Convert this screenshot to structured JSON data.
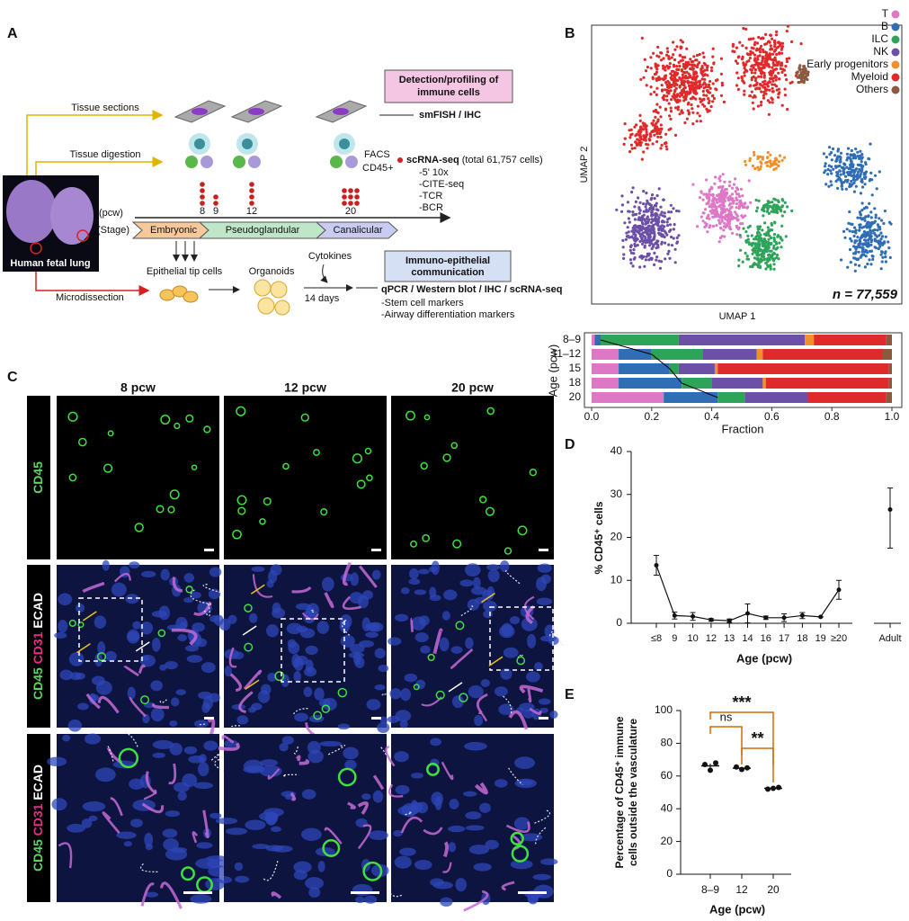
{
  "panel_a": {
    "label": "A",
    "detection_box": [
      "Detection/profiling of",
      "immune cells"
    ],
    "tissue_sections": "Tissue sections",
    "smfish": "smFISH / IHC",
    "tissue_digestion": "Tissue digestion",
    "facs": "FACS",
    "cd45": "CD45+",
    "scrna": "scRNA-seq",
    "total": "(total 61,757 cells)",
    "methods": [
      "-5' 10x",
      "-CITE-seq",
      "-TCR",
      "-BCR"
    ],
    "pcw": "(pcw)",
    "stage": "(Stage)",
    "timepoints": [
      "8",
      "9",
      "12",
      "20"
    ],
    "stages": [
      "Embryonic",
      "Pseudoglandular",
      "Canalicular"
    ],
    "lung": "Human fetal lung",
    "microdissection": "Microdissection",
    "tip_cells": "Epithelial tip cells",
    "organoids": "Organoids",
    "cytokines": "Cytokines",
    "days": "14 days",
    "communication_box": [
      "Immuno-epithelial",
      "communication"
    ],
    "assays": "qPCR / Western blot / IHC / scRNA-seq",
    "markers": [
      "-Stem cell markers",
      "-Airway differentiation markers"
    ]
  },
  "panel_b": {
    "label": "B",
    "umap_x": "UMAP 1",
    "umap_y": "UMAP 2",
    "n": "n = 77,559"
  },
  "panel_c": {
    "label": "C",
    "columns": [
      "8 pcw",
      "12 pcw",
      "20 pcw"
    ],
    "rows": [
      [
        "CD45"
      ],
      [
        "CD45",
        "CD31",
        "ECAD"
      ],
      [
        "CD45",
        "CD31",
        "ECAD"
      ]
    ]
  },
  "chart_data": [
    {
      "type": "bar",
      "orientation": "horizontal",
      "stacked": true,
      "x_label": "Fraction",
      "y_label": "Age (pcw)",
      "categories": [
        "8–9",
        "11–12",
        "15",
        "18",
        "20"
      ],
      "series": [
        {
          "name": "T",
          "color": "#de78c6",
          "values": [
            0.01,
            0.09,
            0.09,
            0.09,
            0.24
          ]
        },
        {
          "name": "B",
          "color": "#2f6db5",
          "values": [
            0.02,
            0.11,
            0.17,
            0.21,
            0.18
          ]
        },
        {
          "name": "ILC",
          "color": "#2ea35a",
          "values": [
            0.26,
            0.17,
            0.03,
            0.1,
            0.09
          ]
        },
        {
          "name": "NK",
          "color": "#6c4fa7",
          "values": [
            0.42,
            0.18,
            0.12,
            0.17,
            0.21
          ]
        },
        {
          "name": "Early progenitors",
          "color": "#f0902b",
          "values": [
            0.03,
            0.02,
            0.01,
            0.01,
            0.0
          ]
        },
        {
          "name": "Myeloid",
          "color": "#e02a2a",
          "values": [
            0.24,
            0.4,
            0.57,
            0.41,
            0.26
          ]
        },
        {
          "name": "Others",
          "color": "#8a5a3e",
          "values": [
            0.02,
            0.03,
            0.01,
            0.01,
            0.02
          ]
        }
      ],
      "xlim": [
        0,
        1
      ],
      "xticks": [
        {
          "value": 0,
          "label": "0.0"
        },
        0.2,
        0.4,
        0.6,
        0.8,
        {
          "value": 1,
          "label": "1.0"
        }
      ]
    },
    {
      "type": "line",
      "panel": "D",
      "x_label": "Age (pcw)",
      "y_label": "% CD45⁺ cells",
      "axis_break": true,
      "categories": [
        "≤8",
        "9",
        "10",
        "12",
        "13",
        "14",
        "16",
        "17",
        "18",
        "19",
        "≥20",
        "Adult"
      ],
      "values": [
        13.5,
        1.8,
        1.6,
        0.8,
        0.6,
        2.3,
        1.3,
        1.3,
        1.8,
        1.5,
        7.8,
        26.5
      ],
      "error_low": [
        2.3,
        0.8,
        0.9,
        0.3,
        0.4,
        2.2,
        0.4,
        0.9,
        0.7,
        0,
        2.2,
        9
      ],
      "error_high": [
        2.3,
        0.8,
        0.9,
        0.3,
        0.4,
        2.2,
        0.4,
        0.9,
        0.7,
        0,
        2.2,
        5
      ],
      "color": "#111111",
      "ylim": [
        0,
        40
      ],
      "yticks": [
        0,
        10,
        20,
        30,
        40
      ]
    },
    {
      "type": "dot",
      "panel": "E",
      "x_label": "Age (pcw)",
      "y_label": [
        "Percentage of CD45⁺ immune",
        "cells outside the vasculature"
      ],
      "categories": [
        "8–9",
        "12",
        "20"
      ],
      "points": [
        [
          67,
          63.5,
          68
        ],
        [
          65.5,
          64,
          65
        ],
        [
          52,
          52.5,
          53
        ]
      ],
      "means": [
        66.2,
        64.8,
        52.5
      ],
      "errors": [
        1.4,
        0.5,
        0.3
      ],
      "comparisons": [
        {
          "groups": [
            "8–9",
            "20"
          ],
          "label": "***"
        },
        {
          "groups": [
            "8–9",
            "12"
          ],
          "label": "ns"
        },
        {
          "groups": [
            "12",
            "20"
          ],
          "label": "**"
        }
      ],
      "color": "#111111",
      "ylim": [
        0,
        100
      ],
      "yticks": [
        0,
        20,
        40,
        60,
        80,
        100
      ]
    }
  ]
}
